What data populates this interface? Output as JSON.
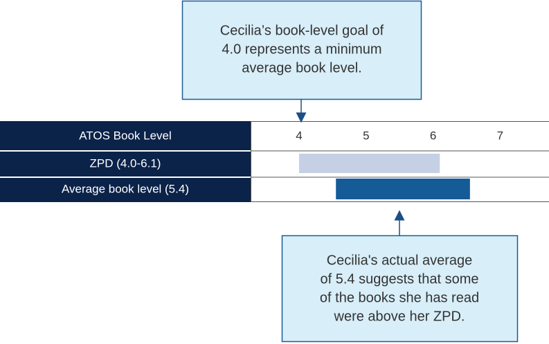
{
  "callouts": {
    "top": [
      "Cecilia’s book-level goal of",
      "4.0 represents a minimum",
      "average book level."
    ],
    "bottom": [
      "Cecilia's actual average",
      "of 5.4 suggests that some",
      "of the books she has read",
      "were above her ZPD."
    ]
  },
  "scale": {
    "label": "ATOS Book Level",
    "ticks": [
      4,
      5,
      6,
      7
    ]
  },
  "rows": [
    {
      "label": "ZPD (4.0-6.1)",
      "range": [
        4.0,
        6.1
      ],
      "color": "#c6d0e5"
    },
    {
      "label": "Average book level (5.4)",
      "range": [
        4.55,
        6.55
      ],
      "color": "#145b98"
    }
  ]
}
